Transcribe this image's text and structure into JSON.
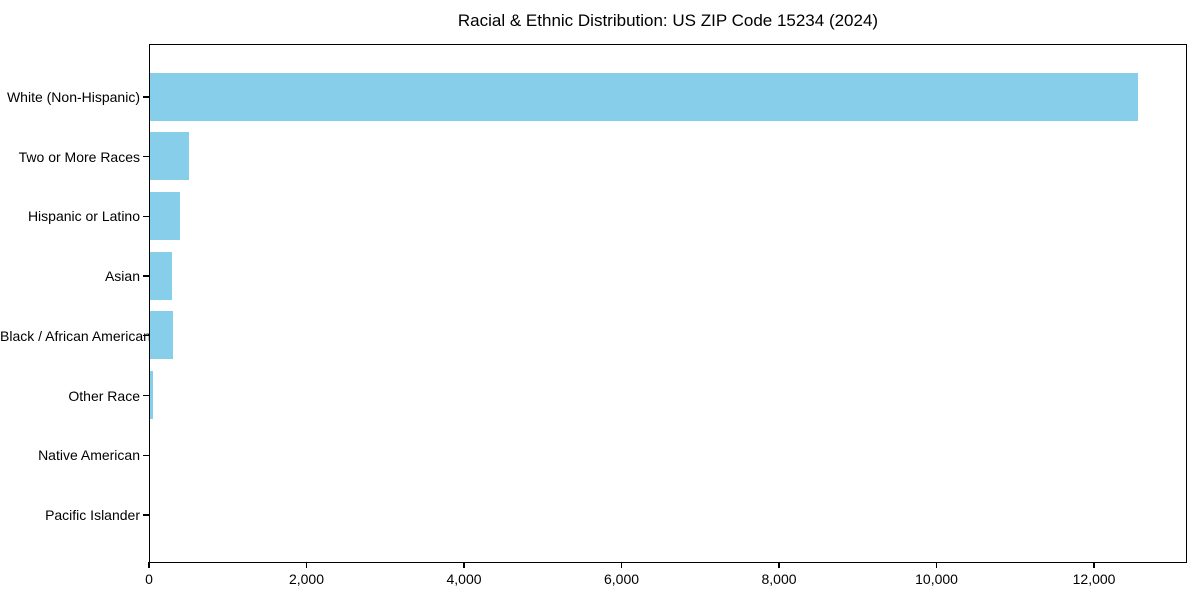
{
  "chart_data": {
    "type": "bar",
    "orientation": "horizontal",
    "title": "Racial & Ethnic Distribution: US ZIP Code 15234 (2024)",
    "categories": [
      "White (Non-Hispanic)",
      "Two or More Races",
      "Hispanic or Latino",
      "Asian",
      "Black / African American",
      "Other Race",
      "Native American",
      "Pacific Islander"
    ],
    "values": [
      12540,
      500,
      385,
      280,
      290,
      42,
      0,
      0
    ],
    "xlabel": "",
    "ylabel": "",
    "xlim": [
      0,
      13180
    ],
    "x_ticks": [
      0,
      2000,
      4000,
      6000,
      8000,
      10000,
      12000
    ],
    "x_tick_labels": [
      "0",
      "2,000",
      "4,000",
      "6,000",
      "8,000",
      "10,000",
      "12,000"
    ],
    "bar_color": "#87CEEB",
    "background_color": "#ffffff",
    "spine_color": "#000000",
    "grid": false,
    "legend": null
  }
}
